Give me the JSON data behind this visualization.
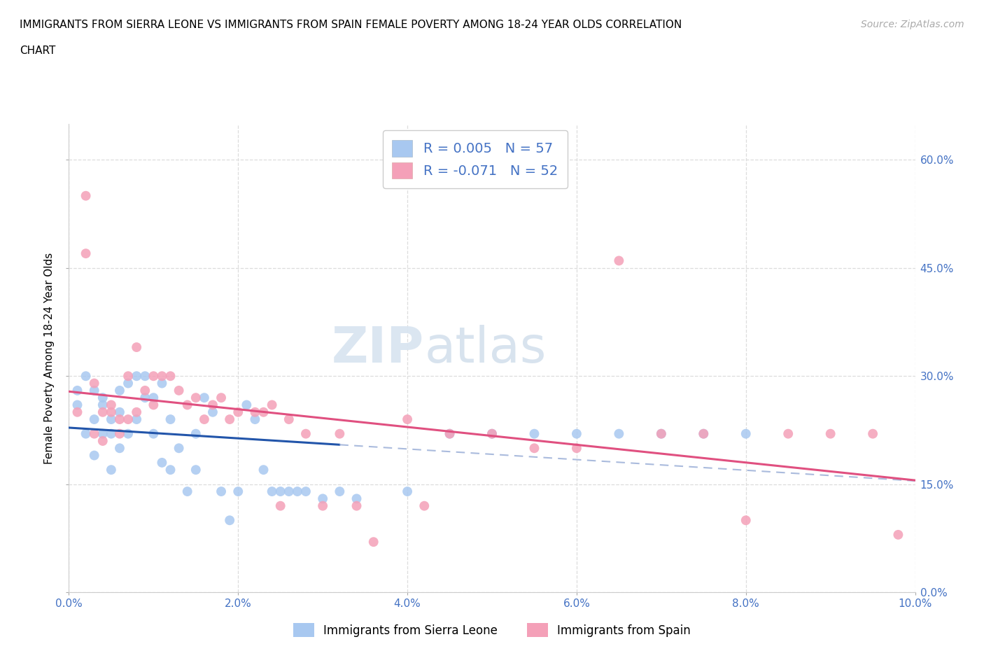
{
  "title_line1": "IMMIGRANTS FROM SIERRA LEONE VS IMMIGRANTS FROM SPAIN FEMALE POVERTY AMONG 18-24 YEAR OLDS CORRELATION",
  "title_line2": "CHART",
  "source_text": "Source: ZipAtlas.com",
  "ylabel": "Female Poverty Among 18-24 Year Olds",
  "watermark_zip": "ZIP",
  "watermark_atlas": "atlas",
  "legend_label1": "Immigrants from Sierra Leone",
  "legend_label2": "Immigrants from Spain",
  "R1": 0.005,
  "N1": 57,
  "R2": -0.071,
  "N2": 52,
  "color1": "#a8c8f0",
  "color2": "#f4a0b8",
  "line_color1": "#2255aa",
  "line_color2": "#e05080",
  "line_color1_dashed": "#aabbdd",
  "line_color2_dashed": "#e898a8",
  "xmin": 0.0,
  "xmax": 0.1,
  "ymin": 0.0,
  "ymax": 0.65,
  "yticks": [
    0.0,
    0.15,
    0.3,
    0.45,
    0.6
  ],
  "xticks": [
    0.0,
    0.02,
    0.04,
    0.06,
    0.08,
    0.1
  ],
  "xtick_labels": [
    "0.0%",
    "2.0%",
    "4.0%",
    "6.0%",
    "8.0%",
    "10.0%"
  ],
  "ytick_labels": [
    "0.0%",
    "15.0%",
    "30.0%",
    "45.0%",
    "60.0%"
  ],
  "grid_color": "#dddddd",
  "background_color": "#ffffff",
  "sierra_leone_x": [
    0.001,
    0.001,
    0.002,
    0.002,
    0.003,
    0.003,
    0.003,
    0.004,
    0.004,
    0.004,
    0.005,
    0.005,
    0.005,
    0.006,
    0.006,
    0.006,
    0.007,
    0.007,
    0.008,
    0.008,
    0.009,
    0.009,
    0.01,
    0.01,
    0.011,
    0.011,
    0.012,
    0.012,
    0.013,
    0.014,
    0.015,
    0.015,
    0.016,
    0.017,
    0.018,
    0.019,
    0.02,
    0.021,
    0.022,
    0.023,
    0.024,
    0.025,
    0.026,
    0.027,
    0.028,
    0.03,
    0.032,
    0.034,
    0.04,
    0.045,
    0.05,
    0.055,
    0.06,
    0.065,
    0.07,
    0.075,
    0.08
  ],
  "sierra_leone_y": [
    0.26,
    0.28,
    0.3,
    0.22,
    0.28,
    0.24,
    0.19,
    0.26,
    0.22,
    0.27,
    0.22,
    0.17,
    0.24,
    0.25,
    0.2,
    0.28,
    0.29,
    0.22,
    0.3,
    0.24,
    0.3,
    0.27,
    0.27,
    0.22,
    0.29,
    0.18,
    0.17,
    0.24,
    0.2,
    0.14,
    0.22,
    0.17,
    0.27,
    0.25,
    0.14,
    0.1,
    0.14,
    0.26,
    0.24,
    0.17,
    0.14,
    0.14,
    0.14,
    0.14,
    0.14,
    0.13,
    0.14,
    0.13,
    0.14,
    0.22,
    0.22,
    0.22,
    0.22,
    0.22,
    0.22,
    0.22,
    0.22
  ],
  "spain_x": [
    0.001,
    0.002,
    0.002,
    0.003,
    0.003,
    0.004,
    0.004,
    0.005,
    0.005,
    0.006,
    0.006,
    0.007,
    0.007,
    0.008,
    0.008,
    0.009,
    0.01,
    0.01,
    0.011,
    0.012,
    0.013,
    0.014,
    0.015,
    0.016,
    0.017,
    0.018,
    0.019,
    0.02,
    0.022,
    0.023,
    0.024,
    0.025,
    0.026,
    0.028,
    0.03,
    0.032,
    0.034,
    0.036,
    0.04,
    0.042,
    0.045,
    0.05,
    0.055,
    0.06,
    0.065,
    0.07,
    0.075,
    0.08,
    0.085,
    0.09,
    0.095,
    0.098
  ],
  "spain_y": [
    0.25,
    0.55,
    0.47,
    0.22,
    0.29,
    0.25,
    0.21,
    0.25,
    0.26,
    0.24,
    0.22,
    0.24,
    0.3,
    0.25,
    0.34,
    0.28,
    0.3,
    0.26,
    0.3,
    0.3,
    0.28,
    0.26,
    0.27,
    0.24,
    0.26,
    0.27,
    0.24,
    0.25,
    0.25,
    0.25,
    0.26,
    0.12,
    0.24,
    0.22,
    0.12,
    0.22,
    0.12,
    0.07,
    0.24,
    0.12,
    0.22,
    0.22,
    0.2,
    0.2,
    0.46,
    0.22,
    0.22,
    0.1,
    0.22,
    0.22,
    0.22,
    0.08
  ]
}
